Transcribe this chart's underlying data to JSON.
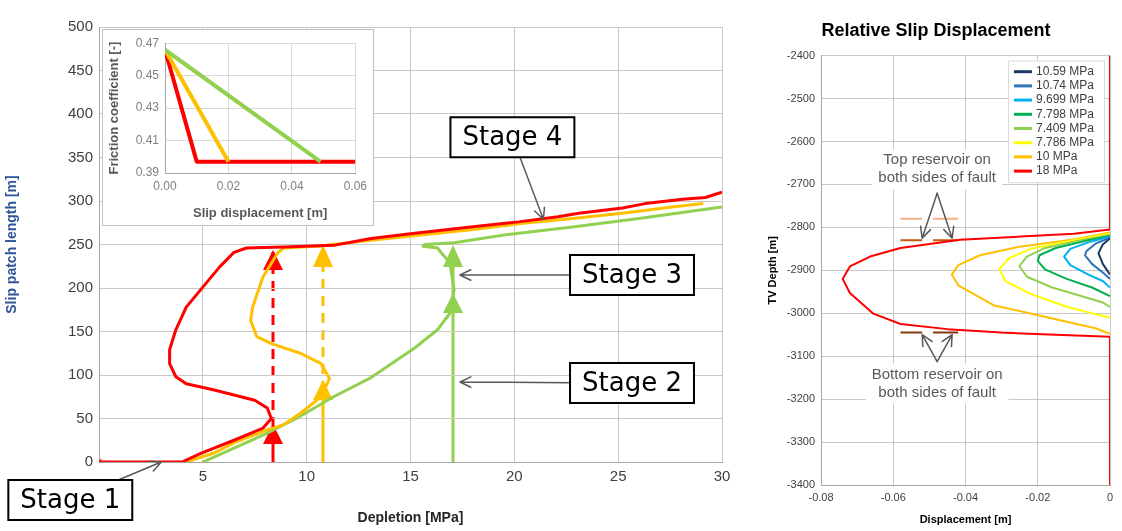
{
  "chart_data": [
    {
      "type": "line",
      "xlabel": "Depletion [MPa]",
      "ylabel": "Slip patch length [m]",
      "xlim": [
        0,
        30
      ],
      "xticks": [
        5,
        10,
        15,
        20,
        25,
        30
      ],
      "ylim": [
        0,
        500
      ],
      "yticks": [
        0,
        50,
        100,
        150,
        200,
        250,
        300,
        350,
        400,
        450,
        500
      ],
      "grid": true,
      "marker": "none",
      "line_style": "solid",
      "series": [
        {
          "color": "#FF0000",
          "x": [
            0,
            4.0,
            4.9,
            6.5,
            7.9,
            8.3,
            8.1,
            7.5,
            5.5,
            4.2,
            3.7,
            3.4,
            3.4,
            3.7,
            4.2,
            5.0,
            5.8,
            6.5,
            7.1,
            8.9,
            11.3,
            13.1,
            15.2,
            17.9,
            20.2,
            22.1,
            23.1,
            25.2,
            26.3,
            28.1,
            29.2,
            30
          ],
          "values": [
            0,
            0,
            10,
            25,
            39,
            50,
            62,
            71,
            83,
            90,
            98,
            113,
            129,
            152,
            178,
            201,
            224,
            241,
            246,
            247,
            249,
            257,
            263,
            270,
            276,
            282,
            286,
            292,
            297,
            302,
            304,
            310
          ]
        },
        {
          "color": "#FFC000",
          "x": [
            4.2,
            5.5,
            6.5,
            8.0,
            8.9,
            9.7,
            10.7,
            11.1,
            10.7,
            9.7,
            8.3,
            7.6,
            7.3,
            7.4,
            7.9,
            8.6,
            8.9,
            10.5,
            13.1,
            15.5,
            17.9,
            20.3,
            22.8,
            25.2,
            27.6,
            29.1
          ],
          "values": [
            0,
            10,
            22,
            36,
            43,
            56,
            75,
            96,
            113,
            125,
            136,
            144,
            163,
            178,
            213,
            240,
            246,
            248,
            255,
            261,
            267,
            274,
            280,
            286,
            293,
            297
          ]
        },
        {
          "color": "#92D050",
          "x": [
            5.0,
            6.5,
            8.0,
            9.5,
            11.3,
            13.1,
            15.2,
            16.3,
            16.9,
            17.1,
            17.0,
            16.9,
            16.5,
            16.3,
            15.6,
            15.7,
            17.1,
            19.5,
            22.8,
            26.0,
            30
          ],
          "values": [
            0,
            16,
            32,
            50,
            75,
            97,
            131,
            152,
            171,
            198,
            213,
            229,
            240,
            246,
            248,
            250,
            252,
            261,
            270,
            280,
            293
          ]
        },
        {
          "type": "scatter",
          "marker": "square",
          "color": "#E46C0A",
          "x": [
            0
          ],
          "values": [
            0
          ]
        }
      ],
      "annotations": [
        {
          "text": "Stage 1",
          "x": 3,
          "y": 0
        },
        "Stage 2",
        "Stage 3",
        {
          "text": "Stage 4",
          "x": 21.4,
          "y": 279
        }
      ]
    },
    {
      "type": "line",
      "xlabel": "Slip displacement [m]",
      "ylabel": "Friction coefficient [-]",
      "xlim": [
        0,
        0.06
      ],
      "xticks": [
        {
          "value": 0,
          "label": "0.00"
        },
        0.02,
        0.04,
        0.06
      ],
      "ylim": [
        0.39,
        0.47
      ],
      "yticks": [
        0.39,
        0.41,
        0.43,
        0.45,
        0.47
      ],
      "grid": true,
      "marker": "none",
      "line_style": "solid",
      "series": [
        {
          "color": "#92D050",
          "x": [
            0,
            0.049
          ],
          "values": [
            0.466,
            0.397
          ]
        },
        {
          "color": "#FFC000",
          "x": [
            0,
            0.02
          ],
          "values": [
            0.466,
            0.397
          ]
        },
        {
          "color": "#FF0000",
          "x": [
            0,
            0.01,
            0.06
          ],
          "values": [
            0.466,
            0.397,
            0.397
          ]
        }
      ]
    },
    {
      "type": "line",
      "title": "Relative Slip Displacement",
      "xlabel": "Displacement [m]",
      "ylabel": "TV Depth [m]",
      "xlim": [
        -0.08,
        0
      ],
      "xticks": [
        -0.08,
        -0.06,
        -0.04,
        -0.02,
        0
      ],
      "ylim": [
        -3400,
        -2400
      ],
      "yticks": [
        -3400,
        -3300,
        -3200,
        -3100,
        -3000,
        -2900,
        -2800,
        -2700,
        -2600,
        -2500,
        -2400
      ],
      "grid": true,
      "legend": "top right",
      "marker": "none",
      "line_style": "solid",
      "series": [
        {
          "name": "10.59 MPa",
          "color": "#1F3864",
          "x": [
            0,
            -0.002,
            -0.0032,
            -0.002,
            0
          ],
          "values": [
            -2826,
            -2840,
            -2860,
            -2885,
            -2910
          ]
        },
        {
          "name": "10.74 MPa",
          "color": "#2E75B6",
          "x": [
            0,
            -0.004,
            -0.0065,
            -0.0069,
            -0.005,
            -0.002,
            0
          ],
          "values": [
            -2824,
            -2838,
            -2855,
            -2865,
            -2885,
            -2905,
            -2920
          ]
        },
        {
          "name": "9.699 MPa",
          "color": "#00B0F0",
          "x": [
            0,
            -0.006,
            -0.011,
            -0.0127,
            -0.011,
            -0.006,
            -0.002,
            0
          ],
          "values": [
            -2822,
            -2835,
            -2850,
            -2868,
            -2888,
            -2910,
            -2925,
            -2940
          ]
        },
        {
          "name": "7.798 MPa",
          "color": "#00B050",
          "x": [
            0,
            -0.007,
            -0.015,
            -0.0195,
            -0.02,
            -0.018,
            -0.012,
            -0.005,
            0
          ],
          "values": [
            -2820,
            -2832,
            -2848,
            -2865,
            -2878,
            -2898,
            -2920,
            -2940,
            -2960
          ]
        },
        {
          "name": "7.409 MPa",
          "color": "#92D050",
          "x": [
            0,
            -0.008,
            -0.018,
            -0.023,
            -0.0251,
            -0.023,
            -0.016,
            -0.008,
            -0.002,
            0
          ],
          "values": [
            -2818,
            -2830,
            -2848,
            -2868,
            -2890,
            -2915,
            -2940,
            -2960,
            -2975,
            -2985
          ]
        },
        {
          "name": "7.786 MPa",
          "color": "#FFFF00",
          "x": [
            0,
            -0.01,
            -0.022,
            -0.028,
            -0.0306,
            -0.029,
            -0.022,
            -0.012,
            -0.004,
            0
          ],
          "values": [
            -2815,
            -2830,
            -2850,
            -2872,
            -2897,
            -2925,
            -2955,
            -2985,
            -3002,
            -3010
          ]
        },
        {
          "name": "10 MPa",
          "color": "#FFC000",
          "x": [
            0,
            -0.01,
            -0.025,
            -0.036,
            -0.042,
            -0.0438,
            -0.042,
            -0.032,
            -0.025,
            -0.012,
            -0.004,
            0
          ],
          "values": [
            -2812,
            -2828,
            -2845,
            -2865,
            -2888,
            -2910,
            -2935,
            -2982,
            -2995,
            -3020,
            -3035,
            -3048
          ]
        },
        {
          "name": "18 MPa",
          "color": "#FF0000",
          "x": [
            0,
            0,
            -0.01,
            -0.0415,
            -0.058,
            -0.0664,
            -0.072,
            -0.074,
            -0.072,
            -0.0655,
            -0.058,
            -0.045,
            -0.03,
            -0.015,
            0,
            0
          ],
          "values": [
            -2400,
            -2805,
            -2815,
            -2829,
            -2848,
            -2868,
            -2891,
            -2920,
            -2953,
            -3001,
            -3025,
            -3037,
            -3045,
            -3050,
            -3055,
            -3400
          ]
        },
        {
          "color": "#F4B183",
          "x": [
            -0.058,
            -0.052,
            -0.05,
            -0.049,
            -0.042
          ],
          "values": [
            -2780,
            -2780,
            null,
            -2780,
            -2780
          ]
        },
        {
          "color": "#C55A11",
          "x": [
            -0.058,
            -0.052,
            -0.05,
            -0.049,
            -0.042
          ],
          "values": [
            -2830,
            -2830,
            null,
            -2830,
            -2830
          ]
        },
        {
          "color": "#843C0C",
          "x": [
            -0.058,
            -0.052,
            -0.05,
            -0.049,
            -0.042
          ],
          "values": [
            -3045,
            -3045,
            null,
            -3045,
            -3045
          ]
        }
      ],
      "annotations": [
        {
          "text": "Top reservoir on both sides of fault",
          "x": -0.052,
          "y": -2830
        },
        {
          "text": "Bottom reservoir on both sides of fault",
          "x": -0.052,
          "y": -3045
        }
      ]
    }
  ]
}
